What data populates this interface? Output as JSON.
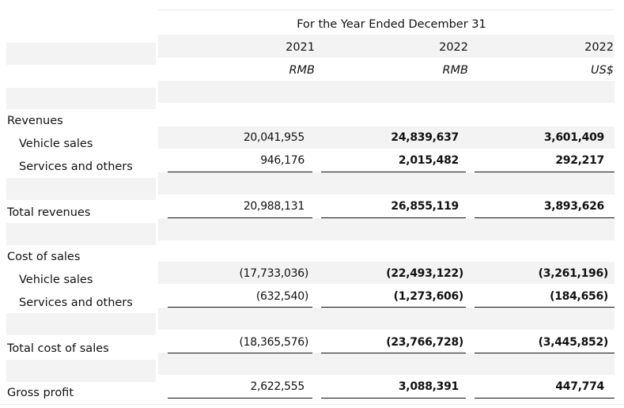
{
  "header": {
    "period": "For the Year Ended December 31",
    "years": [
      "2021",
      "2022",
      "2022"
    ],
    "currencies": [
      "RMB",
      "RMB",
      "US$"
    ]
  },
  "revenues": {
    "label": "Revenues",
    "vehicle_sales": {
      "label": "Vehicle sales",
      "values": [
        "20,041,955",
        "24,839,637",
        "3,601,409"
      ]
    },
    "services": {
      "label": "Services and others",
      "values": [
        "946,176",
        "2,015,482",
        "292,217"
      ]
    }
  },
  "total_revenues": {
    "label": "Total revenues",
    "values": [
      "20,988,131",
      "26,855,119",
      "3,893,626"
    ]
  },
  "cost_of_sales": {
    "label": "Cost of sales",
    "vehicle_sales": {
      "label": "Vehicle sales",
      "values": [
        "(17,733,036)",
        "(22,493,122)",
        "(3,261,196)"
      ]
    },
    "services": {
      "label": "Services and others",
      "values": [
        "(632,540)",
        "(1,273,606)",
        "(184,656)"
      ]
    }
  },
  "total_cost_of_sales": {
    "label": "Total cost of sales",
    "values": [
      "(18,365,576)",
      "(23,766,728)",
      "(3,445,852)"
    ]
  },
  "gross_profit": {
    "label": "Gross profit",
    "values": [
      "2,622,555",
      "3,088,391",
      "447,774"
    ]
  }
}
